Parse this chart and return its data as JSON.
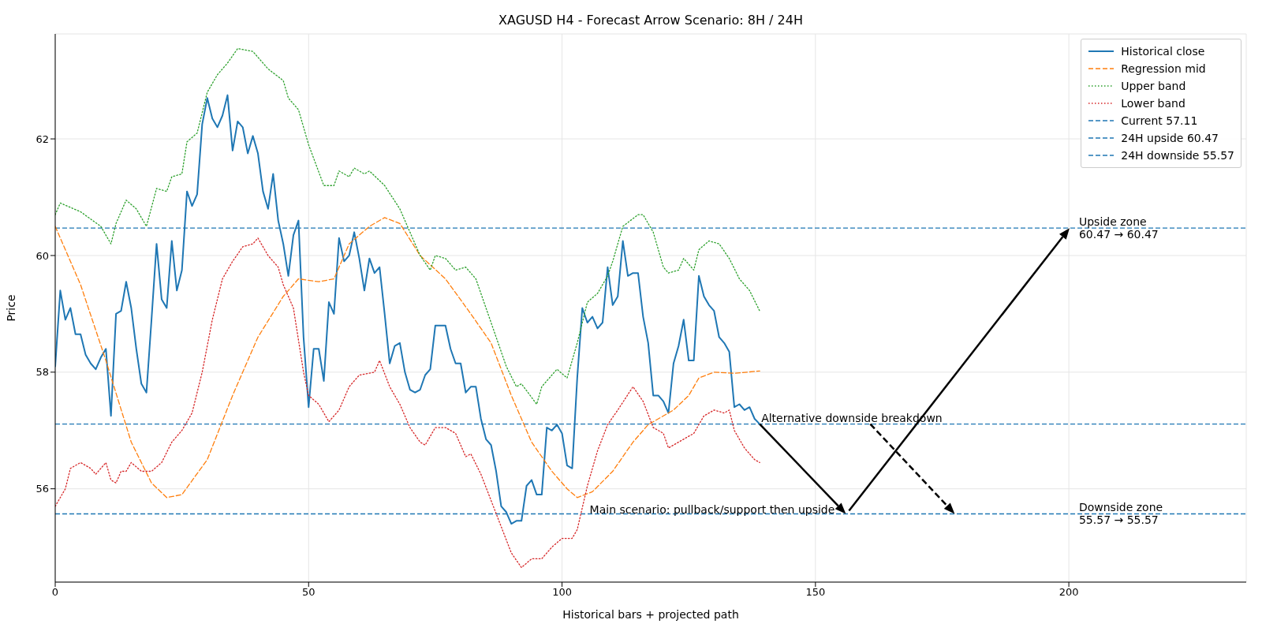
{
  "chart_data": {
    "type": "line",
    "title": "XAGUSD H4 - Forecast Arrow Scenario: 8H / 24H",
    "xlabel": "Historical bars + projected path",
    "ylabel": "Price",
    "xlim": [
      0,
      235
    ],
    "xticks": [
      0,
      50,
      100,
      150,
      200
    ],
    "ylim": [
      54.4,
      63.8
    ],
    "yticks": [
      56,
      58,
      60,
      62
    ],
    "grid": true,
    "legend": "top right",
    "marker": "none",
    "series": [
      {
        "name": "Historical close",
        "color": "#1f77b4",
        "line_style": "solid",
        "x": [
          0,
          1,
          2,
          3,
          4,
          5,
          6,
          7,
          8,
          9,
          10,
          11,
          12,
          13,
          14,
          15,
          16,
          17,
          18,
          19,
          20,
          21,
          22,
          23,
          24,
          25,
          26,
          27,
          28,
          29,
          30,
          31,
          32,
          33,
          34,
          35,
          36,
          37,
          38,
          39,
          40,
          41,
          42,
          43,
          44,
          45,
          46,
          47,
          48,
          49,
          50,
          51,
          52,
          53,
          54,
          55,
          56,
          57,
          58,
          59,
          60,
          61,
          62,
          63,
          64,
          65,
          66,
          67,
          68,
          69,
          70,
          71,
          72,
          73,
          74,
          75,
          76,
          77,
          78,
          79,
          80,
          81,
          82,
          83,
          84,
          85,
          86,
          87,
          88,
          89,
          90,
          91,
          92,
          93,
          94,
          95,
          96,
          97,
          98,
          99,
          100,
          101,
          102,
          103,
          104,
          105,
          106,
          107,
          108,
          109,
          110,
          111,
          112,
          113,
          114,
          115,
          116,
          117,
          118,
          119,
          120,
          121,
          122,
          123,
          124,
          125,
          126,
          127,
          128,
          129,
          130,
          131,
          132,
          133,
          134,
          135,
          136,
          137,
          138,
          139
        ],
        "values": [
          58.1,
          59.4,
          58.9,
          59.1,
          58.65,
          58.65,
          58.3,
          58.15,
          58.05,
          58.25,
          58.4,
          57.25,
          59.0,
          59.05,
          59.55,
          59.1,
          58.4,
          57.8,
          57.65,
          58.9,
          60.2,
          59.25,
          59.1,
          60.25,
          59.4,
          59.75,
          61.1,
          60.85,
          61.05,
          62.25,
          62.7,
          62.35,
          62.2,
          62.4,
          62.75,
          61.8,
          62.3,
          62.2,
          61.75,
          62.05,
          61.75,
          61.1,
          60.8,
          61.4,
          60.6,
          60.2,
          59.65,
          60.35,
          60.6,
          58.6,
          57.4,
          58.4,
          58.4,
          57.85,
          59.2,
          59.0,
          60.3,
          59.9,
          60.0,
          60.4,
          59.95,
          59.4,
          59.95,
          59.7,
          59.8,
          59.0,
          58.15,
          58.45,
          58.5,
          58.0,
          57.7,
          57.65,
          57.7,
          57.95,
          58.05,
          58.8,
          58.8,
          58.8,
          58.4,
          58.15,
          58.15,
          57.65,
          57.75,
          57.75,
          57.2,
          56.85,
          56.75,
          56.3,
          55.7,
          55.6,
          55.4,
          55.45,
          55.45,
          56.05,
          56.15,
          55.9,
          55.9,
          57.05,
          57.0,
          57.1,
          56.95,
          56.4,
          56.35,
          57.9,
          59.1,
          58.85,
          58.95,
          58.75,
          58.85,
          59.8,
          59.15,
          59.3,
          60.25,
          59.65,
          59.7,
          59.7,
          58.95,
          58.5,
          57.6,
          57.6,
          57.5,
          57.3,
          58.15,
          58.45,
          58.9,
          58.2,
          58.2,
          59.65,
          59.3,
          59.15,
          59.05,
          58.6,
          58.5,
          58.35,
          57.4,
          57.45,
          57.35,
          57.4,
          57.2,
          57.11
        ]
      },
      {
        "name": "Regression mid",
        "color": "#ff7f0e",
        "line_style": "dashed",
        "x": [
          0,
          5,
          10,
          15,
          19,
          22,
          25,
          30,
          35,
          40,
          45,
          48,
          52,
          55,
          58,
          62,
          65,
          68,
          72,
          77,
          82,
          86,
          90,
          94,
          98,
          101,
          103,
          106,
          110,
          114,
          117,
          120,
          122,
          125,
          127,
          130,
          134,
          139
        ],
        "values": [
          60.5,
          59.5,
          58.2,
          56.8,
          56.1,
          55.85,
          55.9,
          56.5,
          57.6,
          58.6,
          59.3,
          59.6,
          59.55,
          59.6,
          60.2,
          60.5,
          60.65,
          60.55,
          60.0,
          59.6,
          59.0,
          58.5,
          57.6,
          56.8,
          56.3,
          56.0,
          55.85,
          55.95,
          56.3,
          56.8,
          57.1,
          57.25,
          57.35,
          57.6,
          57.9,
          58.0,
          57.98,
          58.02
        ]
      },
      {
        "name": "Upper band",
        "color": "#2ca02c",
        "line_style": "dotted",
        "x": [
          0,
          1,
          5,
          9,
          11,
          12,
          14,
          16,
          18,
          20,
          22,
          23,
          25,
          26,
          28,
          30,
          32,
          34,
          36,
          39,
          42,
          45,
          46,
          48,
          50,
          53,
          55,
          56,
          58,
          59,
          61,
          62,
          65,
          68,
          70,
          72,
          74,
          75,
          77,
          79,
          81,
          83,
          85,
          87,
          89,
          91,
          92,
          95,
          96,
          98,
          99,
          101,
          103,
          105,
          107,
          109,
          110,
          112,
          115,
          116,
          118,
          120,
          121,
          123,
          124,
          126,
          127,
          129,
          131,
          133,
          135,
          137,
          139
        ],
        "values": [
          60.7,
          60.9,
          60.75,
          60.5,
          60.2,
          60.55,
          60.95,
          60.8,
          60.5,
          61.15,
          61.1,
          61.35,
          61.4,
          61.95,
          62.1,
          62.8,
          63.1,
          63.3,
          63.55,
          63.5,
          63.2,
          63.0,
          62.7,
          62.5,
          61.9,
          61.2,
          61.2,
          61.45,
          61.35,
          61.5,
          61.4,
          61.45,
          61.2,
          60.8,
          60.4,
          60.0,
          59.75,
          60.0,
          59.95,
          59.75,
          59.8,
          59.6,
          59.1,
          58.6,
          58.1,
          57.75,
          57.8,
          57.45,
          57.75,
          57.95,
          58.05,
          57.9,
          58.5,
          59.2,
          59.35,
          59.65,
          59.9,
          60.5,
          60.7,
          60.7,
          60.4,
          59.8,
          59.7,
          59.75,
          59.95,
          59.75,
          60.1,
          60.25,
          60.2,
          59.95,
          59.6,
          59.4,
          59.05
        ]
      },
      {
        "name": "Lower band",
        "color": "#d62728",
        "line_style": "dotted",
        "x": [
          0,
          2,
          3,
          5,
          7,
          8,
          10,
          11,
          12,
          13,
          14,
          15,
          17,
          19,
          21,
          23,
          25,
          27,
          29,
          31,
          33,
          35,
          37,
          39,
          40,
          42,
          44,
          45,
          47,
          49,
          50,
          52,
          54,
          56,
          58,
          60,
          63,
          64,
          66,
          68,
          70,
          72,
          73,
          75,
          77,
          79,
          81,
          82,
          84,
          86,
          88,
          90,
          92,
          94,
          96,
          98,
          100,
          102,
          103,
          105,
          107,
          109,
          111,
          114,
          116,
          118,
          120,
          121,
          123,
          124,
          126,
          128,
          130,
          132,
          133,
          134,
          136,
          138,
          139
        ],
        "values": [
          55.7,
          56.0,
          56.35,
          56.45,
          56.35,
          56.25,
          56.45,
          56.15,
          56.1,
          56.3,
          56.3,
          56.45,
          56.3,
          56.3,
          56.45,
          56.8,
          57.0,
          57.3,
          58.0,
          58.9,
          59.6,
          59.9,
          60.15,
          60.2,
          60.3,
          60.0,
          59.8,
          59.5,
          59.1,
          58.0,
          57.6,
          57.45,
          57.15,
          57.35,
          57.75,
          57.95,
          58.0,
          58.2,
          57.75,
          57.45,
          57.05,
          56.8,
          56.75,
          57.05,
          57.05,
          56.95,
          56.55,
          56.6,
          56.25,
          55.8,
          55.35,
          54.9,
          54.65,
          54.8,
          54.8,
          55.0,
          55.15,
          55.15,
          55.3,
          56.05,
          56.65,
          57.1,
          57.35,
          57.75,
          57.5,
          57.05,
          56.95,
          56.7,
          56.8,
          56.85,
          56.95,
          57.25,
          57.35,
          57.3,
          57.35,
          57.0,
          56.7,
          56.5,
          56.45
        ]
      }
    ],
    "ref_lines": [
      {
        "axis": "y",
        "value": 57.11,
        "label": "Current 57.11",
        "color": "#1f77b4",
        "line_style": "dashed"
      },
      {
        "axis": "y",
        "value": 60.47,
        "label": "24H upside 60.47",
        "color": "#1f77b4",
        "line_style": "dashed"
      },
      {
        "axis": "y",
        "value": 55.57,
        "label": "24H downside 55.57",
        "color": "#1f77b4",
        "line_style": "dashed"
      }
    ],
    "annotations": [
      {
        "text": "Main scenario: pullback/support then upside",
        "x": 156,
        "y": 55.57
      },
      {
        "text": "Alternative downside breakdown",
        "x": 139,
        "y": 57.11
      },
      {
        "text": "Upside zone\n60.47 → 60.47",
        "x": 202,
        "y": 60.47
      },
      {
        "text": "Downside zone\n55.57 → 55.57",
        "x": 202,
        "y": 55.57
      }
    ]
  }
}
